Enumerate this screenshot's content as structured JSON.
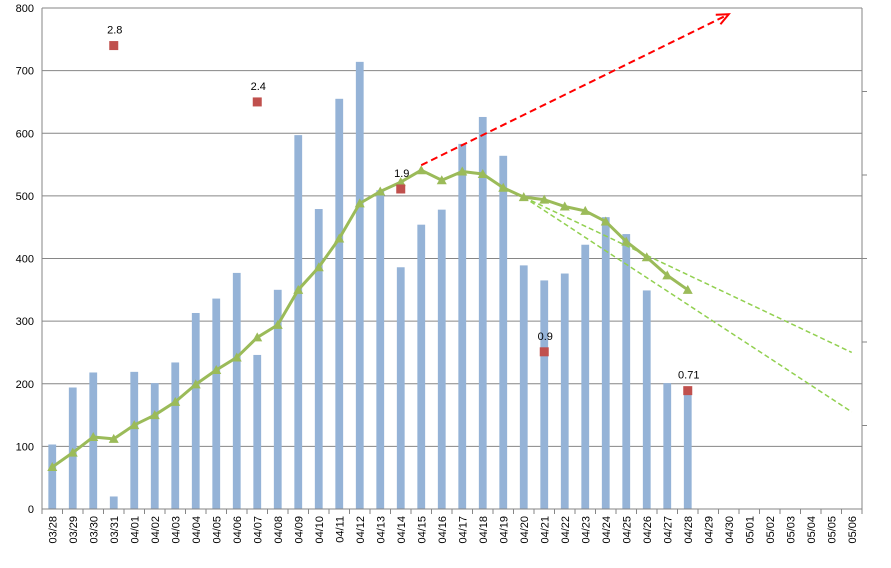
{
  "chart_data": {
    "type": "bar",
    "title": "",
    "xlabel": "",
    "ylabel": "",
    "ylim": [
      0,
      800
    ],
    "yticks": [
      0,
      100,
      200,
      300,
      400,
      500,
      600,
      700,
      800
    ],
    "grid": true,
    "categories": [
      "03/28",
      "03/29",
      "03/30",
      "03/31",
      "04/01",
      "04/02",
      "04/03",
      "04/04",
      "04/05",
      "04/06",
      "04/07",
      "04/08",
      "04/09",
      "04/10",
      "04/11",
      "04/12",
      "04/13",
      "04/14",
      "04/15",
      "04/16",
      "04/17",
      "04/18",
      "04/19",
      "04/20",
      "04/21",
      "04/22",
      "04/23",
      "04/24",
      "04/25",
      "04/26",
      "04/27",
      "04/28",
      "04/29",
      "04/30",
      "05/01",
      "05/02",
      "05/03",
      "05/04",
      "05/05",
      "05/06"
    ],
    "series": [
      {
        "kind": "bar",
        "color": "#95b3d7",
        "values": [
          103,
          194,
          218,
          20,
          219,
          201,
          234,
          313,
          336,
          377,
          246,
          350,
          597,
          479,
          655,
          714,
          509,
          386,
          454,
          478,
          583,
          626,
          564,
          389,
          365,
          376,
          422,
          466,
          439,
          349,
          201,
          195,
          null,
          null,
          null,
          null,
          null,
          null,
          null,
          null
        ]
      },
      {
        "kind": "line",
        "color": "#9bbb59",
        "marker": "triangle",
        "values": [
          67,
          90,
          115,
          112,
          134,
          150,
          171,
          199,
          222,
          242,
          274,
          294,
          350,
          386,
          432,
          488,
          507,
          522,
          541,
          525,
          539,
          535,
          513,
          498,
          494,
          483,
          476,
          459,
          427,
          402,
          373,
          350,
          null,
          null,
          null,
          null,
          null,
          null,
          null,
          null
        ]
      },
      {
        "kind": "points",
        "color": "#c0504d",
        "marker": "square",
        "points": [
          {
            "x": "03/31",
            "y": 740,
            "label": "2.8"
          },
          {
            "x": "04/07",
            "y": 650,
            "label": "2.4"
          },
          {
            "x": "04/14",
            "y": 511,
            "label": "1.9"
          },
          {
            "x": "04/21",
            "y": 251,
            "label": "0.9"
          },
          {
            "x": "04/28",
            "y": 189,
            "label": "0.71"
          }
        ]
      },
      {
        "kind": "trend",
        "color": "#ff0000",
        "style": "dashed-arrow",
        "from": {
          "x": "04/15",
          "y": 549
        },
        "to": {
          "x": "04/30",
          "y": 790
        }
      },
      {
        "kind": "trend",
        "color": "#92d050",
        "style": "dashed",
        "from": {
          "x": "04/20",
          "y": 498
        },
        "to": {
          "x": "05/06",
          "y": 250
        }
      },
      {
        "kind": "trend",
        "color": "#92d050",
        "style": "dashed",
        "from": {
          "x": "04/20",
          "y": 498
        },
        "to": {
          "x": "05/06",
          "y": 155
        }
      }
    ]
  }
}
